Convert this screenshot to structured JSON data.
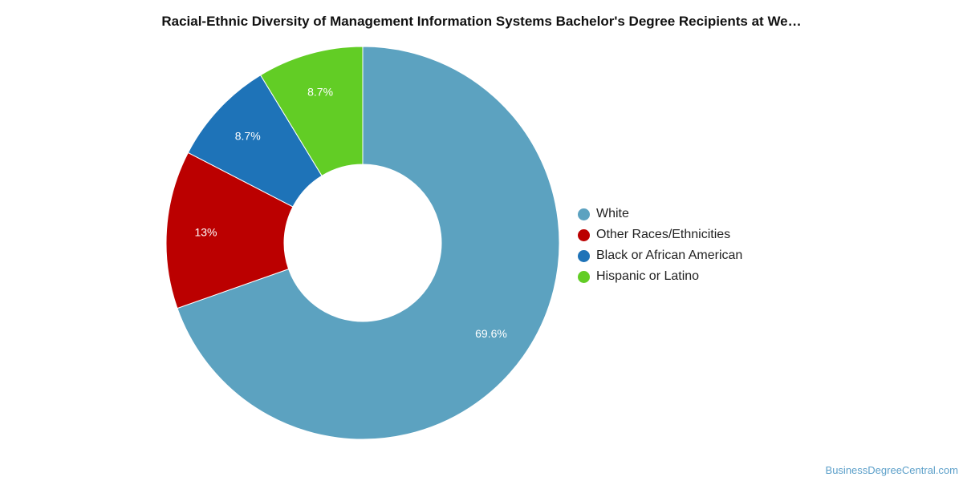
{
  "chart_data": {
    "type": "pie",
    "title": "Racial-Ethnic Diversity of Management Information Systems Bachelor's Degree Recipients at We…",
    "donut": true,
    "legend_position": "right",
    "slices": [
      {
        "name": "White",
        "value": 69.6,
        "label": "69.6%",
        "color": "#5ca2c0"
      },
      {
        "name": "Other Races/Ethnicities",
        "value": 13.0,
        "label": "13%",
        "color": "#bb0000"
      },
      {
        "name": "Black or African American",
        "value": 8.7,
        "label": "8.7%",
        "color": "#1e73b8"
      },
      {
        "name": "Hispanic or Latino",
        "value": 8.7,
        "label": "8.7%",
        "color": "#62cd25"
      }
    ]
  },
  "footer": {
    "watermark": "BusinessDegreeCentral.com"
  }
}
